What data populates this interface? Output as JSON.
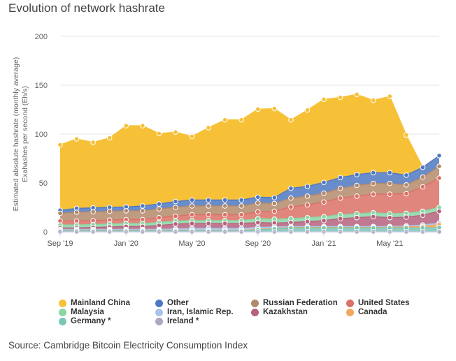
{
  "title": "Evolution of network hashrate",
  "source": "Source: Cambridge Bitcoin Electricity Consumption Index",
  "chart_data": {
    "type": "area",
    "stacked": true,
    "title": "Evolution of network hashrate",
    "ylabel_lines": [
      "Estimated absolute hashrate (monthly average)",
      "Exahashes per second (Eh/s)"
    ],
    "xlabel": "",
    "ylim": [
      0,
      200
    ],
    "yticks": [
      0,
      50,
      100,
      150,
      200
    ],
    "xtick_labels": [
      {
        "index": 0,
        "label": "Sep '19"
      },
      {
        "index": 4,
        "label": "Jan '20"
      },
      {
        "index": 8,
        "label": "May '20"
      },
      {
        "index": 12,
        "label": "Sep '20"
      },
      {
        "index": 16,
        "label": "Jan '21"
      },
      {
        "index": 20,
        "label": "May '21"
      }
    ],
    "x": [
      "Sep '19",
      "Oct '19",
      "Nov '19",
      "Dec '19",
      "Jan '20",
      "Feb '20",
      "Mar '20",
      "Apr '20",
      "May '20",
      "Jun '20",
      "Jul '20",
      "Aug '20",
      "Sep '20",
      "Oct '20",
      "Nov '20",
      "Dec '20",
      "Jan '21",
      "Feb '21",
      "Mar '21",
      "Apr '21",
      "May '21",
      "Jun '21",
      "Jul '21",
      "Aug '21"
    ],
    "series": [
      {
        "name": "Ireland *",
        "color": "#a9a9bf",
        "values": [
          0,
          0,
          0,
          0,
          0,
          0,
          0,
          0,
          0,
          0,
          0,
          0,
          0,
          0,
          0,
          0,
          0,
          0,
          0,
          0,
          0,
          0,
          0,
          0
        ]
      },
      {
        "name": "Germany *",
        "color": "#7cc6b5",
        "values": [
          1,
          1,
          1,
          1,
          1,
          1,
          1,
          1,
          1,
          1,
          1,
          1,
          2,
          3,
          4,
          4,
          4,
          4,
          4,
          4,
          4,
          4,
          4,
          4.5
        ]
      },
      {
        "name": "Canada",
        "color": "#f0a860",
        "values": [
          0.5,
          0.5,
          0.5,
          0.5,
          0.5,
          0.5,
          0.5,
          0.5,
          0.5,
          0.5,
          0.5,
          0.5,
          0.5,
          0.5,
          0.5,
          0.5,
          0.5,
          0.5,
          0.5,
          0.5,
          0.5,
          1,
          1.5,
          3
        ]
      },
      {
        "name": "Iran, Islamic Rep.",
        "color": "#a9c4e8",
        "values": [
          1,
          1,
          1,
          1,
          1,
          1,
          1,
          1.5,
          2,
          2,
          2,
          2,
          2,
          1.5,
          1,
          1,
          1,
          1,
          1,
          1,
          1,
          1,
          1.5,
          1.5
        ]
      },
      {
        "name": "Kazakhstan",
        "color": "#b5627d",
        "values": [
          1.5,
          1.5,
          2,
          2.5,
          3,
          3,
          4,
          5,
          5,
          5,
          5,
          5,
          5,
          4,
          4,
          5,
          6,
          8,
          9,
          10,
          9,
          9,
          10,
          12
        ]
      },
      {
        "name": "Malaysia",
        "color": "#8ad6a5",
        "values": [
          3,
          3,
          3,
          3,
          3,
          3,
          3,
          3,
          3,
          3,
          3,
          3,
          4,
          4,
          4,
          4,
          4,
          4,
          4,
          4,
          4,
          4,
          4,
          4
        ]
      },
      {
        "name": "United States",
        "color": "#db7166",
        "values": [
          4,
          4,
          4,
          4,
          4,
          4,
          5,
          5,
          6,
          6,
          6,
          6,
          7,
          8,
          12,
          13,
          15,
          17,
          18,
          19,
          20,
          20,
          25,
          30
        ]
      },
      {
        "name": "Russian Federation",
        "color": "#b3896b",
        "values": [
          8,
          9,
          9,
          9,
          9,
          9,
          9,
          9,
          9,
          9,
          9,
          9,
          9,
          8,
          9,
          9,
          9,
          10,
          11,
          11,
          11,
          9,
          10,
          12
        ]
      },
      {
        "name": "Other",
        "color": "#4f78c2",
        "values": [
          3,
          4,
          4,
          4,
          4,
          5,
          5,
          6,
          6,
          6,
          6,
          6,
          6,
          6,
          10,
          10,
          11,
          11,
          11,
          11,
          11,
          10,
          10,
          11
        ]
      },
      {
        "name": "Mainland China",
        "color": "#f7c137",
        "values": [
          67,
          71,
          67,
          71,
          83,
          82,
          72,
          71,
          65,
          74,
          82,
          82,
          90,
          91,
          70,
          78,
          85,
          82,
          82,
          74,
          78,
          41,
          0,
          0
        ]
      }
    ]
  },
  "legend": {
    "items": [
      {
        "label": "Mainland China",
        "color": "#f7c137"
      },
      {
        "label": "Other",
        "color": "#4f78c2"
      },
      {
        "label": "Russian Federation",
        "color": "#b3896b"
      },
      {
        "label": "United States",
        "color": "#db7166"
      },
      {
        "label": "Malaysia",
        "color": "#8ad6a5"
      },
      {
        "label": "Iran, Islamic Rep.",
        "color": "#a9c4e8"
      },
      {
        "label": "Kazakhstan",
        "color": "#b5627d"
      },
      {
        "label": "Canada",
        "color": "#f0a860"
      },
      {
        "label": "Germany *",
        "color": "#7cc6b5"
      },
      {
        "label": "Ireland *",
        "color": "#a9a9bf"
      }
    ]
  }
}
